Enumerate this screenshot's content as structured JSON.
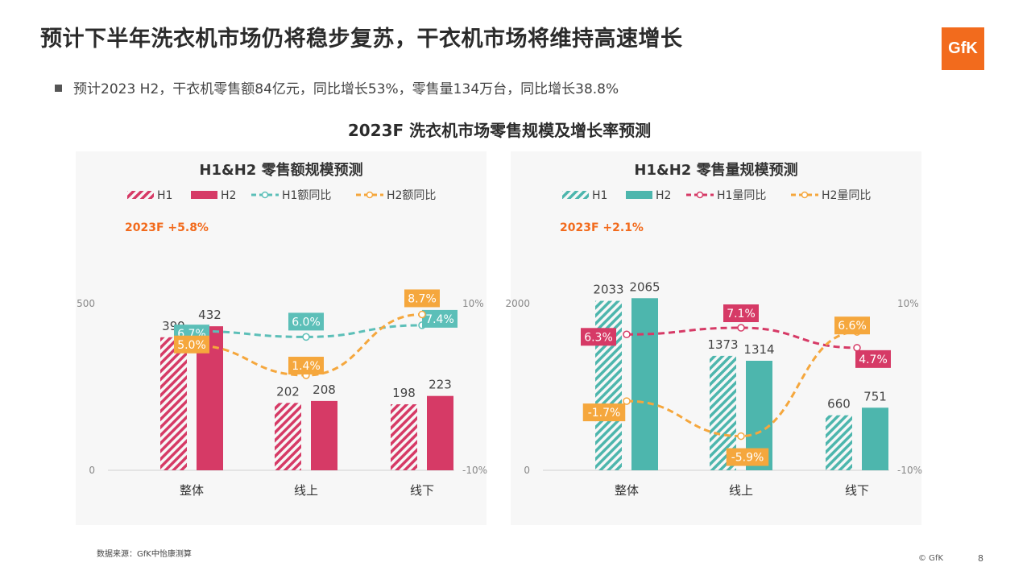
{
  "header": {
    "title": "预计下半年洗衣机市场仍将稳步复苏，干衣机市场将维持高速增长",
    "logo": "GfK",
    "bullet": "预计2023 H2，干衣机零售额84亿元，同比增长53%，零售量134万台，同比增长38.8%",
    "subtitle": "2023F 洗衣机市场零售规模及增长率预测"
  },
  "footer": {
    "source": "数据来源：GfK中怡康测算",
    "copyright": "© GfK",
    "page": "8"
  },
  "colors": {
    "value_h1": "#d63a66",
    "value_h2": "#d63a66",
    "value_h1_rate": "#5cbfb8",
    "value_h2_rate": "#f5a73d",
    "volume_h1": "#4db6ad",
    "volume_h2": "#4db6ad",
    "volume_h1_rate": "#d63a66",
    "volume_h2_rate": "#f5a73d",
    "accent_text": "#f26b1d"
  },
  "chart_data": [
    {
      "type": "bar",
      "title": "H1&H2 零售额规模预测",
      "annotation": "2023F +5.8%",
      "categories": [
        "整体",
        "线上",
        "线下"
      ],
      "series": [
        {
          "name": "H1",
          "values": [
            399,
            202,
            198
          ],
          "labels": [
            "399",
            "202",
            "198"
          ]
        },
        {
          "name": "H2",
          "values": [
            432,
            208,
            223
          ],
          "labels": [
            "432",
            "208",
            "223"
          ]
        }
      ],
      "line_series": [
        {
          "name": "H1额同比",
          "values": [
            6.7,
            6.0,
            7.4
          ],
          "labels": [
            "6.7%",
            "6.0%",
            "7.4%"
          ]
        },
        {
          "name": "H2额同比",
          "values": [
            5.0,
            1.4,
            8.7
          ],
          "labels": [
            "5.0%",
            "1.4%",
            "8.7%"
          ]
        }
      ],
      "ylim": [
        0,
        500
      ],
      "y_ticks": [
        "0",
        "500"
      ],
      "y2lim": [
        -10,
        10
      ],
      "y2_ticks": [
        "-10%",
        "10%"
      ],
      "legend_position": "top"
    },
    {
      "type": "bar",
      "title": "H1&H2 零售量规模预测",
      "annotation": "2023F +2.1%",
      "categories": [
        "整体",
        "线上",
        "线下"
      ],
      "series": [
        {
          "name": "H1",
          "values": [
            2033,
            1373,
            660
          ],
          "labels": [
            "2033",
            "1373",
            "660"
          ]
        },
        {
          "name": "H2",
          "values": [
            2065,
            1314,
            751
          ],
          "labels": [
            "2065",
            "1314",
            "751"
          ]
        }
      ],
      "line_series": [
        {
          "name": "H1量同比",
          "values": [
            6.3,
            7.1,
            4.7
          ],
          "labels": [
            "6.3%",
            "7.1%",
            "4.7%"
          ]
        },
        {
          "name": "H2量同比",
          "values": [
            -1.7,
            -5.9,
            6.6
          ],
          "labels": [
            "-1.7%",
            "-5.9%",
            "6.6%"
          ]
        }
      ],
      "ylim": [
        0,
        2000
      ],
      "y_ticks": [
        "0",
        "2000"
      ],
      "y2lim": [
        -10,
        10
      ],
      "y2_ticks": [
        "-10%",
        "10%"
      ],
      "legend_position": "top"
    }
  ]
}
